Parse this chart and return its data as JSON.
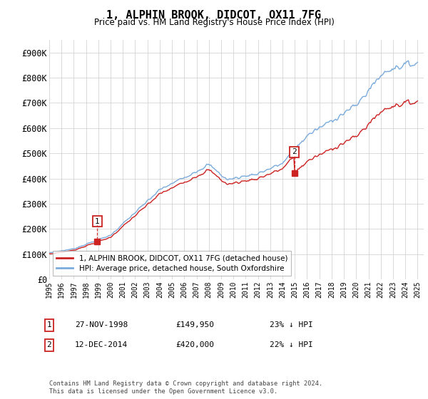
{
  "title": "1, ALPHIN BROOK, DIDCOT, OX11 7FG",
  "subtitle": "Price paid vs. HM Land Registry's House Price Index (HPI)",
  "ylim": [
    0,
    950000
  ],
  "yticks": [
    0,
    100000,
    200000,
    300000,
    400000,
    500000,
    600000,
    700000,
    800000,
    900000
  ],
  "ytick_labels": [
    "£0",
    "£100K",
    "£200K",
    "£300K",
    "£400K",
    "£500K",
    "£600K",
    "£700K",
    "£800K",
    "£900K"
  ],
  "hpi_color": "#7aabdc",
  "price_color": "#cc2222",
  "marker_color": "#cc2222",
  "sale1_year_f": 1998.92,
  "sale1_price": 149950,
  "sale2_year_f": 2014.96,
  "sale2_price": 420000,
  "legend_label1": "1, ALPHIN BROOK, DIDCOT, OX11 7FG (detached house)",
  "legend_label2": "HPI: Average price, detached house, South Oxfordshire",
  "footer": "Contains HM Land Registry data © Crown copyright and database right 2024.\nThis data is licensed under the Open Government Licence v3.0.",
  "background_color": "#ffffff",
  "grid_color": "#cccccc",
  "xlim_left": 1995.0,
  "xlim_right": 2025.5
}
